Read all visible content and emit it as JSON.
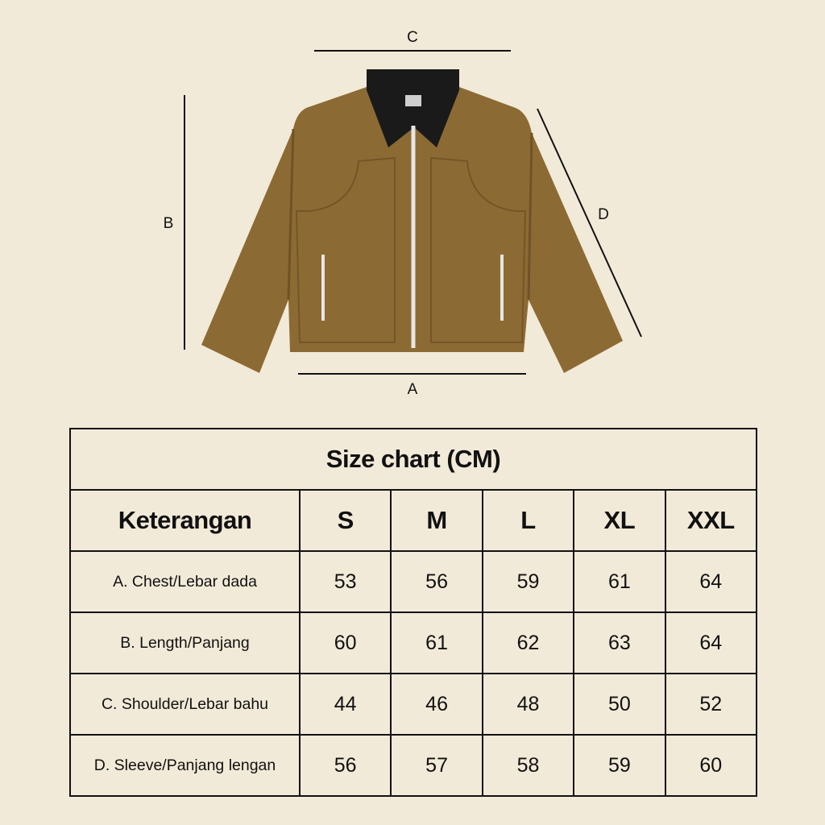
{
  "diagram": {
    "labels": {
      "a": "A",
      "b": "B",
      "c": "C",
      "d": "D"
    },
    "colors": {
      "background": "#f2ead8",
      "jacket": "#8c6a33",
      "collar": "#1a1a1a",
      "zipper": "#e6e6e6"
    }
  },
  "table": {
    "title": "Size chart (CM)",
    "headers": [
      "Keterangan",
      "S",
      "M",
      "L",
      "XL",
      "XXL"
    ],
    "rows": [
      {
        "label": "A. Chest/Lebar dada",
        "values": [
          "53",
          "56",
          "59",
          "61",
          "64"
        ]
      },
      {
        "label": "B. Length/Panjang",
        "values": [
          "60",
          "61",
          "62",
          "63",
          "64"
        ]
      },
      {
        "label": "C. Shoulder/Lebar bahu",
        "values": [
          "44",
          "46",
          "48",
          "50",
          "52"
        ]
      },
      {
        "label": "D. Sleeve/Panjang lengan",
        "values": [
          "56",
          "57",
          "58",
          "59",
          "60"
        ]
      }
    ]
  }
}
